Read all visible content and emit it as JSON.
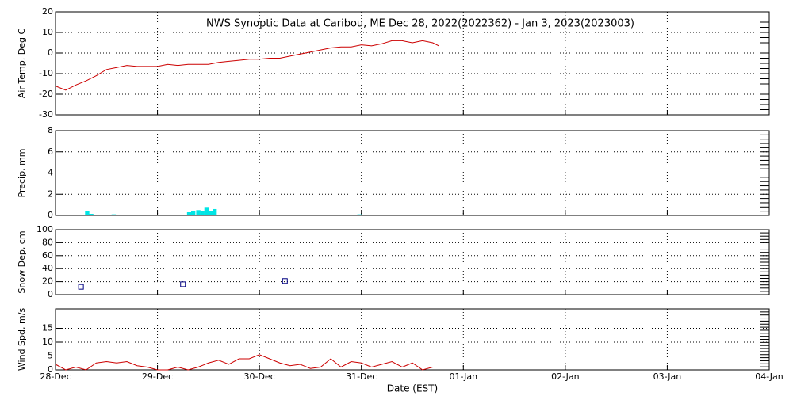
{
  "chart_data": [
    {
      "type": "line",
      "title": "NWS Synoptic Data at Caribou, ME   Dec 28, 2022(2022362) - Jan  3, 2023(2023003)",
      "ylabel": "Air Temp, Deg C",
      "x": [
        0,
        0.1,
        0.2,
        0.3,
        0.4,
        0.5,
        0.6,
        0.7,
        0.8,
        0.9,
        1.0,
        1.1,
        1.2,
        1.3,
        1.4,
        1.5,
        1.6,
        1.7,
        1.8,
        1.9,
        2.0,
        2.1,
        2.2,
        2.3,
        2.4,
        2.5,
        2.6,
        2.7,
        2.8,
        2.9,
        3.0,
        3.1,
        3.2,
        3.3,
        3.4,
        3.5,
        3.6,
        3.7,
        3.76
      ],
      "series": [
        {
          "color": "#cc0000",
          "values": [
            -16,
            -18,
            -15.5,
            -13.5,
            -11,
            -8,
            -7,
            -6,
            -6.5,
            -6.5,
            -6.5,
            -5.5,
            -6,
            -5.5,
            -5.5,
            -5.5,
            -4.5,
            -4,
            -3.5,
            -3,
            -3,
            -2.5,
            -2.5,
            -1.5,
            -0.5,
            0.5,
            1.5,
            2.5,
            3,
            3,
            4,
            3.5,
            4.5,
            6,
            6,
            5,
            6,
            5,
            3.5
          ]
        }
      ],
      "xlim": [
        0,
        7
      ],
      "xticks": [
        0,
        1,
        2,
        3,
        4,
        5,
        6,
        7
      ],
      "ylim": [
        -30,
        20
      ],
      "yticks": [
        -30,
        -20,
        -10,
        0,
        10,
        20
      ],
      "grid": true
    },
    {
      "type": "bar",
      "ylabel": "Precip, mm",
      "x": [
        0.29,
        0.33,
        0.55,
        1.29,
        1.33,
        1.38,
        1.42,
        1.46,
        1.5,
        1.54,
        2.96
      ],
      "values": [
        0.4,
        0.15,
        0.1,
        0.3,
        0.4,
        0.5,
        0.4,
        0.8,
        0.4,
        0.6,
        0.1
      ],
      "color": "#00e5e5",
      "xlim": [
        0,
        7
      ],
      "xticks": [
        0,
        1,
        2,
        3,
        4,
        5,
        6,
        7
      ],
      "ylim": [
        0,
        8
      ],
      "yticks": [
        0,
        2,
        4,
        6,
        8
      ],
      "grid": true
    },
    {
      "type": "scatter",
      "ylabel": "Snow Dep, cm",
      "x": [
        0.25,
        1.25,
        2.25
      ],
      "values": [
        12,
        16,
        21
      ],
      "color": "#000080",
      "xlim": [
        0,
        7
      ],
      "xticks": [
        0,
        1,
        2,
        3,
        4,
        5,
        6,
        7
      ],
      "ylim": [
        0,
        100
      ],
      "yticks": [
        0,
        20,
        40,
        60,
        80,
        100
      ],
      "grid": true
    },
    {
      "type": "line",
      "ylabel": "Wind Spd, m/s",
      "xlabel": "Date (EST)",
      "x": [
        0,
        0.1,
        0.2,
        0.3,
        0.4,
        0.5,
        0.6,
        0.7,
        0.8,
        0.9,
        1.0,
        1.1,
        1.2,
        1.3,
        1.4,
        1.5,
        1.6,
        1.7,
        1.8,
        1.9,
        2.0,
        2.1,
        2.2,
        2.3,
        2.4,
        2.5,
        2.6,
        2.7,
        2.8,
        2.9,
        3.0,
        3.1,
        3.2,
        3.3,
        3.4,
        3.5,
        3.6,
        3.7
      ],
      "series": [
        {
          "color": "#cc0000",
          "values": [
            2,
            0,
            1,
            0,
            2.5,
            3,
            2.5,
            3,
            1.5,
            1,
            0,
            0,
            1,
            0,
            1,
            2.5,
            3.5,
            2,
            4,
            4,
            5.5,
            4,
            2.5,
            1.5,
            2,
            0.5,
            1,
            4,
            1,
            3,
            2.5,
            1,
            2,
            3,
            1,
            2.5,
            0,
            1
          ]
        }
      ],
      "xlim": [
        0,
        7
      ],
      "xticks": [
        {
          "value": 0,
          "label": "28-Dec"
        },
        {
          "value": 1,
          "label": "29-Dec"
        },
        {
          "value": 2,
          "label": "30-Dec"
        },
        {
          "value": 3,
          "label": "31-Dec"
        },
        {
          "value": 4,
          "label": "01-Jan"
        },
        {
          "value": 5,
          "label": "02-Jan"
        },
        {
          "value": 6,
          "label": "03-Jan"
        },
        {
          "value": 7,
          "label": "04-Jan"
        }
      ],
      "ylim": [
        0,
        22
      ],
      "yticks": [
        0,
        5,
        10,
        15
      ],
      "grid": true
    }
  ]
}
